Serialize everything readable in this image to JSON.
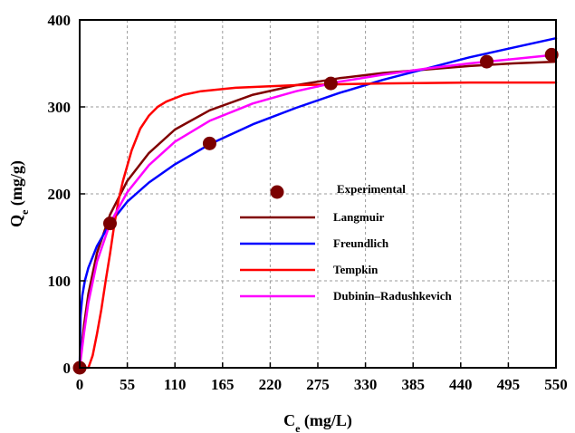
{
  "chart_data": {
    "type": "line",
    "title": "",
    "xlabel": {
      "main": "C",
      "sub": "e",
      "unit": " (mg/L)"
    },
    "ylabel": {
      "main": "Q",
      "sub": "e",
      "unit": " (mg/g)"
    },
    "xlim": [
      0,
      550
    ],
    "ylim": [
      0,
      400
    ],
    "xticks": [
      0,
      55,
      110,
      165,
      220,
      275,
      330,
      385,
      440,
      495,
      550
    ],
    "yticks": [
      0,
      100,
      200,
      300,
      400
    ],
    "grid": true,
    "legend_position": "center",
    "experimental": {
      "name": "Experimental",
      "color": "#7b0000",
      "x": [
        0,
        35,
        150,
        290,
        470,
        545
      ],
      "y": [
        0,
        166,
        258,
        327,
        352,
        360
      ]
    },
    "series": [
      {
        "name": "Langmuir",
        "color": "#800000",
        "x": [
          0,
          2,
          5,
          10,
          20,
          35,
          55,
          80,
          110,
          150,
          200,
          250,
          300,
          350,
          400,
          450,
          500,
          550
        ],
        "y": [
          0,
          22,
          49,
          85,
          132,
          176,
          215,
          247,
          274,
          296,
          314,
          325,
          333,
          339,
          343,
          347,
          350,
          352
        ]
      },
      {
        "name": "Freundlich",
        "color": "#0000ff",
        "x": [
          0,
          1,
          3,
          6,
          10,
          20,
          35,
          55,
          80,
          110,
          150,
          200,
          250,
          300,
          350,
          400,
          450,
          500,
          550
        ],
        "y": [
          0,
          60,
          83,
          100,
          115,
          140,
          166,
          191,
          213,
          234,
          257,
          280,
          299,
          316,
          331,
          344,
          357,
          368,
          379
        ]
      },
      {
        "name": "Tempkin",
        "color": "#ff0000",
        "x": [
          0,
          10,
          15,
          20,
          25,
          30,
          35,
          40,
          45,
          50,
          60,
          70,
          80,
          90,
          100,
          120,
          140,
          180,
          250,
          350,
          450,
          550
        ],
        "y": [
          0,
          0,
          14,
          39,
          67,
          100,
          131,
          165,
          193,
          215,
          250,
          275,
          290,
          300,
          306,
          314,
          318,
          322,
          325,
          327,
          328,
          328
        ]
      },
      {
        "name": "Dubinin–Radushkevich",
        "color": "#ff00ff",
        "x": [
          0,
          5,
          10,
          20,
          35,
          55,
          80,
          110,
          150,
          200,
          250,
          300,
          350,
          400,
          450,
          500,
          550
        ],
        "y": [
          0,
          40,
          75,
          122,
          166,
          202,
          233,
          260,
          284,
          304,
          318,
          329,
          337,
          344,
          350,
          355,
          360
        ]
      }
    ]
  }
}
